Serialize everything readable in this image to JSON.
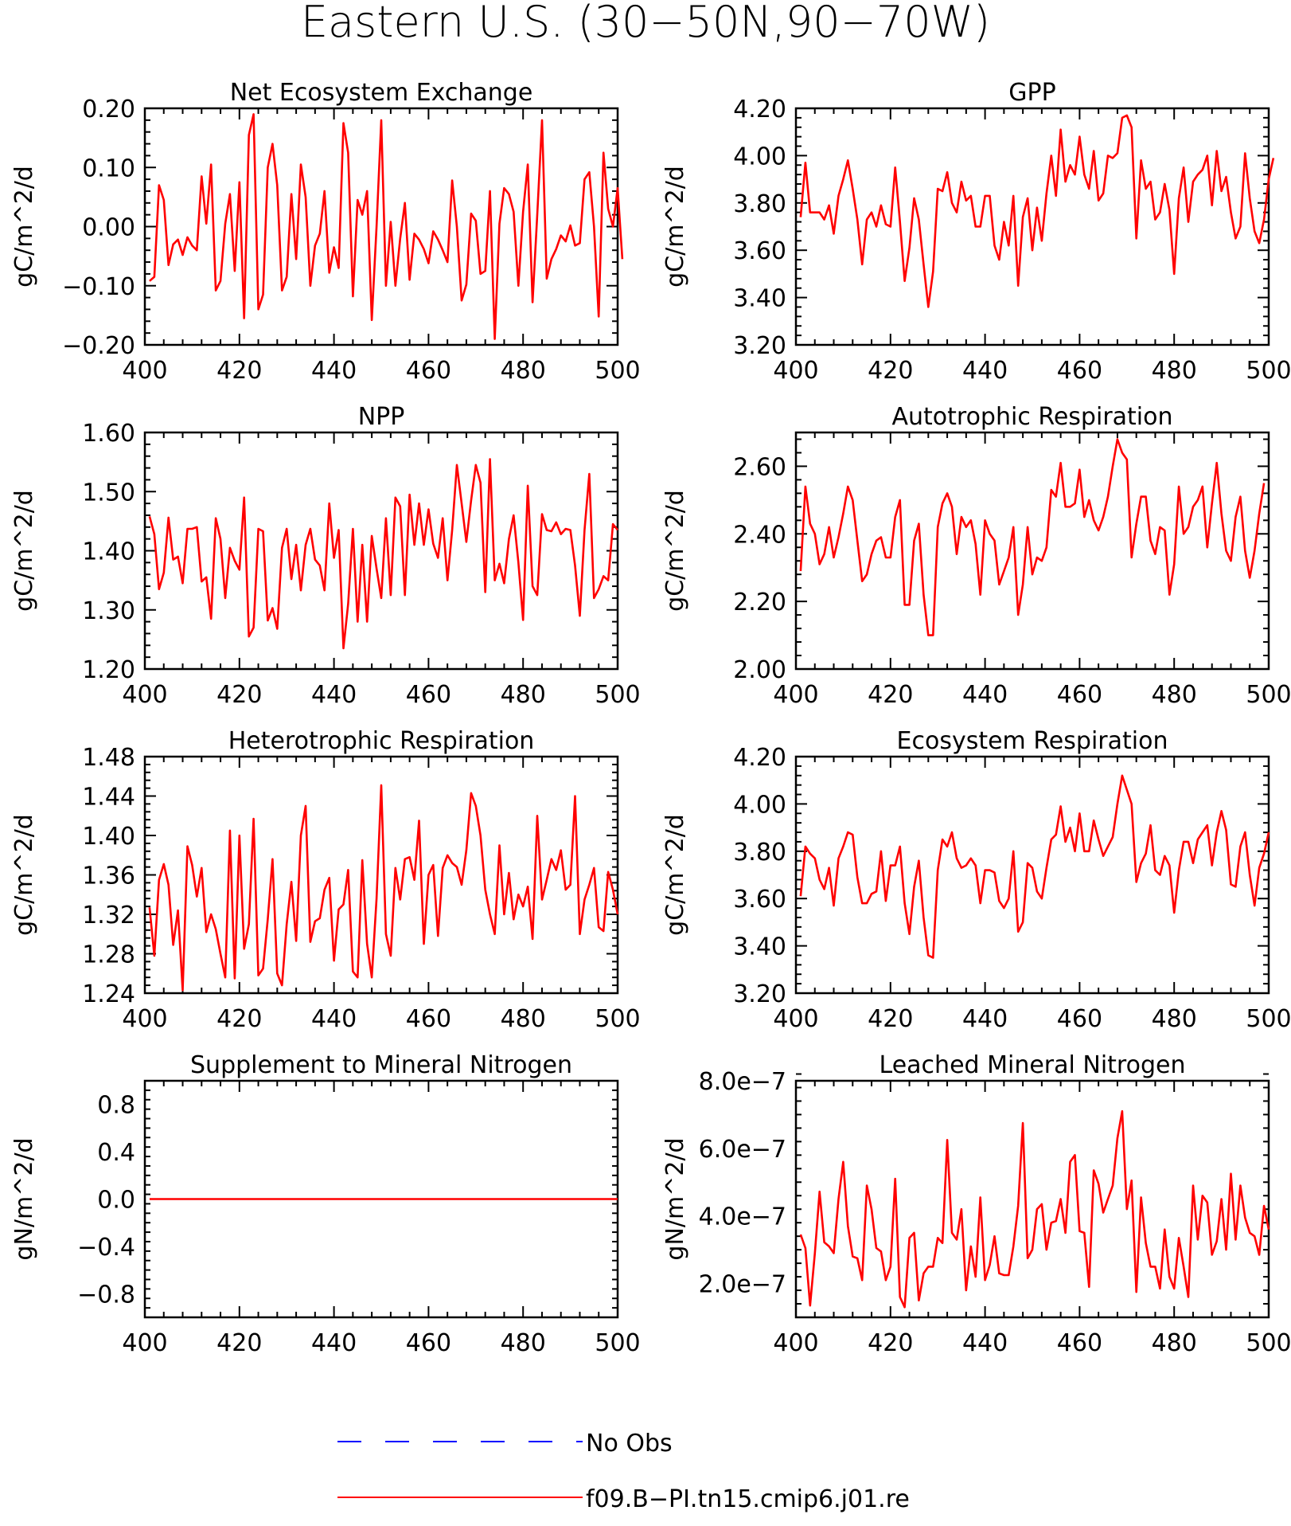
{
  "title": "Eastern U.S. (30−50N,90−70W)",
  "colors": {
    "model": "#ff0000",
    "obs": "#0000ff",
    "axis": "#000000"
  },
  "legend": {
    "placement": "bottom-center",
    "entries": [
      {
        "label": "No Obs",
        "color": "#0000ff",
        "style": "dashed"
      },
      {
        "label": "f09.B−PI.tn15.cmip6.j01.re",
        "color": "#ff0000",
        "style": "solid"
      }
    ]
  },
  "chart_data": [
    {
      "type": "line",
      "title": "Net Ecosystem Exchange",
      "ylabel": "gC/m^2/d",
      "xlim": [
        400,
        500
      ],
      "ylim": [
        -0.2,
        0.2
      ],
      "xticks": [
        400,
        420,
        440,
        460,
        480,
        500
      ],
      "yticks": [
        -0.2,
        -0.1,
        0.0,
        0.1,
        0.2
      ],
      "ytick_labels": [
        "−0.20",
        "−0.10",
        "0.00",
        "0.10",
        "0.20"
      ],
      "x_start": 401,
      "x_step": 1,
      "series": [
        {
          "values": [
            -0.092,
            -0.085,
            0.07,
            0.045,
            -0.065,
            -0.03,
            -0.022,
            -0.048,
            -0.018,
            -0.032,
            -0.04,
            0.085,
            0.005,
            0.105,
            -0.108,
            -0.092,
            0.005,
            0.055,
            -0.075,
            0.075,
            -0.155,
            0.155,
            0.19,
            -0.14,
            -0.115,
            0.1,
            0.14,
            0.07,
            -0.108,
            -0.085,
            0.055,
            -0.055,
            0.105,
            0.05,
            -0.1,
            -0.032,
            -0.012,
            0.06,
            -0.078,
            -0.035,
            -0.07,
            0.175,
            0.125,
            -0.118,
            0.045,
            0.02,
            0.06,
            -0.158,
            0.0,
            0.18,
            -0.1,
            0.008,
            -0.1,
            -0.02,
            0.04,
            -0.09,
            -0.012,
            -0.022,
            -0.038,
            -0.062,
            -0.008,
            -0.022,
            -0.04,
            -0.06,
            0.078,
            0.0,
            -0.125,
            -0.098,
            0.022,
            0.01,
            -0.08,
            -0.075,
            0.06,
            -0.19,
            0.005,
            0.065,
            0.055,
            0.025,
            -0.1,
            0.025,
            0.105,
            -0.128,
            0.02,
            0.18,
            -0.088,
            -0.055,
            -0.038,
            -0.015,
            -0.025,
            0.002,
            -0.032,
            -0.028,
            0.08,
            0.092,
            0.0,
            -0.152,
            0.125,
            0.03,
            0.0,
            0.065,
            -0.055
          ]
        }
      ]
    },
    {
      "type": "line",
      "title": "GPP",
      "ylabel": "gC/m^2/d",
      "xlim": [
        400,
        500
      ],
      "ylim": [
        3.2,
        4.2
      ],
      "xticks": [
        400,
        420,
        440,
        460,
        480,
        500
      ],
      "yticks": [
        3.2,
        3.4,
        3.6,
        3.8,
        4.0,
        4.2
      ],
      "ytick_labels": [
        "3.20",
        "3.40",
        "3.60",
        "3.80",
        "4.00",
        "4.20"
      ],
      "x_start": 401,
      "x_step": 1,
      "series": [
        {
          "values": [
            3.74,
            3.97,
            3.76,
            3.76,
            3.76,
            3.73,
            3.79,
            3.67,
            3.83,
            3.9,
            3.98,
            3.86,
            3.73,
            3.54,
            3.73,
            3.76,
            3.7,
            3.79,
            3.71,
            3.7,
            3.95,
            3.72,
            3.47,
            3.61,
            3.82,
            3.73,
            3.54,
            3.36,
            3.51,
            3.86,
            3.85,
            3.93,
            3.8,
            3.76,
            3.89,
            3.81,
            3.83,
            3.7,
            3.7,
            3.83,
            3.83,
            3.62,
            3.56,
            3.72,
            3.62,
            3.83,
            3.45,
            3.74,
            3.82,
            3.6,
            3.78,
            3.64,
            3.84,
            4.0,
            3.83,
            4.11,
            3.89,
            3.96,
            3.92,
            4.08,
            3.92,
            3.86,
            4.02,
            3.81,
            3.84,
            4.0,
            3.99,
            4.01,
            4.16,
            4.17,
            4.12,
            3.65,
            3.98,
            3.86,
            3.89,
            3.73,
            3.76,
            3.88,
            3.77,
            3.5,
            3.82,
            3.95,
            3.72,
            3.89,
            3.92,
            3.94,
            4.0,
            3.79,
            4.02,
            3.85,
            3.91,
            3.76,
            3.65,
            3.7,
            4.01,
            3.82,
            3.68,
            3.63,
            3.73,
            3.9,
            3.99
          ]
        }
      ]
    },
    {
      "type": "line",
      "title": "NPP",
      "ylabel": "gC/m^2/d",
      "xlim": [
        400,
        500
      ],
      "ylim": [
        1.2,
        1.6
      ],
      "xticks": [
        400,
        420,
        440,
        460,
        480,
        500
      ],
      "yticks": [
        1.2,
        1.3,
        1.4,
        1.5,
        1.6
      ],
      "ytick_labels": [
        "1.20",
        "1.30",
        "1.40",
        "1.50",
        "1.60"
      ],
      "x_start": 401,
      "x_step": 1,
      "series": [
        {
          "values": [
            1.458,
            1.428,
            1.335,
            1.363,
            1.456,
            1.385,
            1.39,
            1.345,
            1.437,
            1.437,
            1.44,
            1.348,
            1.355,
            1.285,
            1.455,
            1.42,
            1.32,
            1.405,
            1.383,
            1.368,
            1.49,
            1.255,
            1.27,
            1.437,
            1.433,
            1.282,
            1.303,
            1.268,
            1.405,
            1.437,
            1.352,
            1.41,
            1.333,
            1.41,
            1.437,
            1.385,
            1.375,
            1.333,
            1.48,
            1.388,
            1.435,
            1.235,
            1.31,
            1.437,
            1.28,
            1.41,
            1.28,
            1.425,
            1.37,
            1.32,
            1.455,
            1.325,
            1.49,
            1.475,
            1.325,
            1.495,
            1.41,
            1.48,
            1.41,
            1.47,
            1.412,
            1.388,
            1.455,
            1.35,
            1.435,
            1.545,
            1.48,
            1.415,
            1.485,
            1.545,
            1.515,
            1.33,
            1.555,
            1.35,
            1.378,
            1.345,
            1.42,
            1.46,
            1.38,
            1.283,
            1.51,
            1.34,
            1.325,
            1.462,
            1.435,
            1.433,
            1.448,
            1.428,
            1.437,
            1.435,
            1.375,
            1.29,
            1.435,
            1.53,
            1.32,
            1.335,
            1.357,
            1.35,
            1.445,
            1.435
          ]
        }
      ]
    },
    {
      "type": "line",
      "title": "Autotrophic Respiration",
      "ylabel": "gC/m^2/d",
      "xlim": [
        400,
        500
      ],
      "ylim": [
        2.0,
        2.7
      ],
      "xticks": [
        400,
        420,
        440,
        460,
        480,
        500
      ],
      "yticks": [
        2.0,
        2.2,
        2.4,
        2.6
      ],
      "ytick_labels": [
        "2.00",
        "2.20",
        "2.40",
        "2.60"
      ],
      "x_start": 401,
      "x_step": 1,
      "series": [
        {
          "values": [
            2.29,
            2.54,
            2.43,
            2.4,
            2.31,
            2.34,
            2.42,
            2.33,
            2.39,
            2.46,
            2.54,
            2.5,
            2.38,
            2.26,
            2.28,
            2.34,
            2.38,
            2.39,
            2.33,
            2.33,
            2.45,
            2.5,
            2.19,
            2.19,
            2.38,
            2.43,
            2.22,
            2.1,
            2.1,
            2.42,
            2.49,
            2.52,
            2.48,
            2.34,
            2.45,
            2.42,
            2.44,
            2.37,
            2.22,
            2.44,
            2.4,
            2.38,
            2.25,
            2.29,
            2.33,
            2.42,
            2.16,
            2.25,
            2.42,
            2.28,
            2.33,
            2.32,
            2.36,
            2.53,
            2.51,
            2.61,
            2.48,
            2.48,
            2.49,
            2.59,
            2.45,
            2.5,
            2.44,
            2.41,
            2.45,
            2.51,
            2.6,
            2.68,
            2.64,
            2.62,
            2.33,
            2.43,
            2.51,
            2.51,
            2.38,
            2.34,
            2.42,
            2.41,
            2.22,
            2.31,
            2.54,
            2.4,
            2.42,
            2.48,
            2.5,
            2.54,
            2.36,
            2.49,
            2.61,
            2.46,
            2.35,
            2.32,
            2.45,
            2.51,
            2.35,
            2.27,
            2.35,
            2.46,
            2.55
          ]
        }
      ]
    },
    {
      "type": "line",
      "title": "Heterotrophic Respiration",
      "ylabel": "gC/m^2/d",
      "xlim": [
        400,
        500
      ],
      "ylim": [
        1.24,
        1.48
      ],
      "xticks": [
        400,
        420,
        440,
        460,
        480,
        500
      ],
      "yticks": [
        1.24,
        1.28,
        1.32,
        1.36,
        1.4,
        1.44,
        1.48
      ],
      "ytick_labels": [
        "1.24",
        "1.28",
        "1.32",
        "1.36",
        "1.40",
        "1.44",
        "1.48"
      ],
      "x_start": 401,
      "x_step": 1,
      "series": [
        {
          "values": [
            1.327,
            1.278,
            1.355,
            1.371,
            1.35,
            1.289,
            1.324,
            1.243,
            1.389,
            1.37,
            1.338,
            1.367,
            1.302,
            1.32,
            1.305,
            1.28,
            1.256,
            1.405,
            1.255,
            1.4,
            1.285,
            1.31,
            1.417,
            1.258,
            1.265,
            1.315,
            1.376,
            1.26,
            1.248,
            1.31,
            1.353,
            1.293,
            1.4,
            1.43,
            1.292,
            1.313,
            1.316,
            1.345,
            1.357,
            1.273,
            1.325,
            1.33,
            1.365,
            1.262,
            1.256,
            1.375,
            1.29,
            1.256,
            1.336,
            1.451,
            1.3,
            1.278,
            1.367,
            1.335,
            1.376,
            1.378,
            1.355,
            1.415,
            1.29,
            1.36,
            1.37,
            1.298,
            1.367,
            1.38,
            1.372,
            1.368,
            1.35,
            1.385,
            1.443,
            1.43,
            1.4,
            1.345,
            1.32,
            1.3,
            1.39,
            1.32,
            1.362,
            1.315,
            1.34,
            1.328,
            1.348,
            1.295,
            1.42,
            1.335,
            1.355,
            1.376,
            1.365,
            1.385,
            1.345,
            1.35,
            1.44,
            1.3,
            1.335,
            1.35,
            1.367,
            1.307,
            1.303,
            1.363,
            1.345,
            1.32
          ]
        }
      ]
    },
    {
      "type": "line",
      "title": "Ecosystem Respiration",
      "ylabel": "gC/m^2/d",
      "xlim": [
        400,
        500
      ],
      "ylim": [
        3.2,
        4.2
      ],
      "xticks": [
        400,
        420,
        440,
        460,
        480,
        500
      ],
      "yticks": [
        3.2,
        3.4,
        3.6,
        3.8,
        4.0,
        4.2
      ],
      "ytick_labels": [
        "3.20",
        "3.40",
        "3.60",
        "3.80",
        "4.00",
        "4.20"
      ],
      "x_start": 401,
      "x_step": 1,
      "series": [
        {
          "values": [
            3.61,
            3.82,
            3.79,
            3.77,
            3.68,
            3.64,
            3.73,
            3.57,
            3.77,
            3.82,
            3.88,
            3.87,
            3.69,
            3.58,
            3.58,
            3.62,
            3.63,
            3.8,
            3.59,
            3.74,
            3.74,
            3.82,
            3.58,
            3.45,
            3.65,
            3.76,
            3.52,
            3.36,
            3.35,
            3.72,
            3.85,
            3.82,
            3.88,
            3.77,
            3.73,
            3.74,
            3.77,
            3.74,
            3.58,
            3.72,
            3.72,
            3.71,
            3.59,
            3.56,
            3.6,
            3.8,
            3.46,
            3.5,
            3.75,
            3.73,
            3.63,
            3.6,
            3.73,
            3.85,
            3.87,
            3.99,
            3.84,
            3.9,
            3.8,
            3.96,
            3.8,
            3.8,
            3.93,
            3.85,
            3.78,
            3.82,
            3.86,
            4.0,
            4.12,
            4.06,
            4.0,
            3.67,
            3.75,
            3.79,
            3.91,
            3.72,
            3.7,
            3.78,
            3.74,
            3.54,
            3.72,
            3.84,
            3.84,
            3.75,
            3.85,
            3.88,
            3.91,
            3.74,
            3.88,
            3.97,
            3.89,
            3.66,
            3.65,
            3.82,
            3.88,
            3.7,
            3.57,
            3.73,
            3.79,
            3.88
          ]
        }
      ]
    },
    {
      "type": "line",
      "title": "Supplement to Mineral Nitrogen",
      "ylabel": "gN/m^2/d",
      "xlim": [
        400,
        500
      ],
      "ylim": [
        -1.0,
        1.0
      ],
      "xticks": [
        400,
        420,
        440,
        460,
        480,
        500
      ],
      "yticks": [
        -0.8,
        -0.4,
        0.0,
        0.4,
        0.8
      ],
      "ytick_labels": [
        "−0.8",
        "−0.4",
        "0.0",
        "0.4",
        "0.8"
      ],
      "x_start": 401,
      "x_step": 99,
      "series": [
        {
          "values": [
            0.0,
            0.0
          ]
        }
      ]
    },
    {
      "type": "line",
      "title": "Leached Mineral Nitrogen",
      "ylabel": "gN/m^2/d",
      "xlim": [
        400,
        500
      ],
      "ylim": [
        1e-07,
        8e-07
      ],
      "xticks": [
        400,
        420,
        440,
        460,
        480,
        500
      ],
      "yticks": [
        2e-07,
        4e-07,
        6e-07,
        8e-07
      ],
      "ytick_labels": [
        "2.0e−7",
        "4.0e−7",
        "6.0e−7",
        "8.0e−7"
      ],
      "x_start": 401,
      "x_step": 1,
      "series": [
        {
          "values": [
            3.45e-07,
            3.05e-07,
            1.35e-07,
            2.9e-07,
            4.72e-07,
            3.22e-07,
            3.1e-07,
            2.9e-07,
            4.5e-07,
            5.6e-07,
            3.7e-07,
            2.8e-07,
            2.75e-07,
            2.1e-07,
            4.9e-07,
            4.2e-07,
            3.05e-07,
            2.95e-07,
            2.1e-07,
            2.5e-07,
            5.1e-07,
            1.6e-07,
            1.3e-07,
            3.35e-07,
            3.5e-07,
            1.5e-07,
            2.3e-07,
            2.5e-07,
            2.5e-07,
            3.35e-07,
            3.2e-07,
            6.25e-07,
            3.5e-07,
            3.3e-07,
            4.2e-07,
            1.8e-07,
            3.1e-07,
            2.2e-07,
            4.55e-07,
            2.1e-07,
            2.55e-07,
            3.4e-07,
            2.3e-07,
            2.25e-07,
            2.25e-07,
            3.1e-07,
            4.3e-07,
            6.75e-07,
            2.75e-07,
            3e-07,
            4.2e-07,
            4.35e-07,
            3e-07,
            3.8e-07,
            3.85e-07,
            4.5e-07,
            3.5e-07,
            5.6e-07,
            5.8e-07,
            3.55e-07,
            3.5e-07,
            1.9e-07,
            5.35e-07,
            4.95e-07,
            4.1e-07,
            4.5e-07,
            4.9e-07,
            6.3e-07,
            7.1e-07,
            4.2e-07,
            5.05e-07,
            1.75e-07,
            4.55e-07,
            3.2e-07,
            2.5e-07,
            2.5e-07,
            1.85e-07,
            3.6e-07,
            2.2e-07,
            1.85e-07,
            3.35e-07,
            2.5e-07,
            1.6e-07,
            4.9e-07,
            3.3e-07,
            4.6e-07,
            4.4e-07,
            2.85e-07,
            3.25e-07,
            4.5e-07,
            3e-07,
            5.25e-07,
            3.3e-07,
            4.9e-07,
            3.95e-07,
            3.5e-07,
            3.4e-07,
            2.85e-07,
            4.3e-07,
            3.6e-07
          ]
        }
      ]
    }
  ]
}
